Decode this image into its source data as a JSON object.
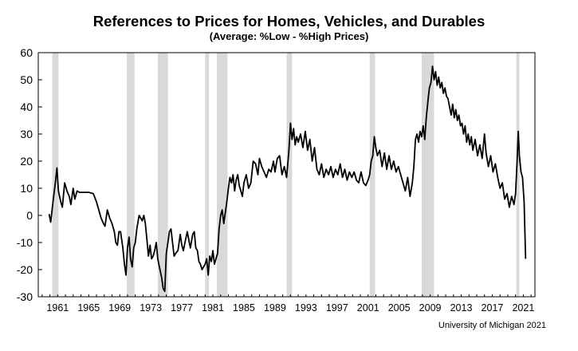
{
  "chart_data": {
    "type": "line",
    "title": "References to Prices for Homes, Vehicles, and Durables",
    "subtitle": "(Average:  %Low - %High Prices)",
    "xlabel": "",
    "ylabel": "",
    "xlim": [
      1958.5,
      2022.5
    ],
    "ylim": [
      -30,
      60
    ],
    "yticks": [
      -30,
      -20,
      -10,
      0,
      10,
      20,
      30,
      40,
      50,
      60
    ],
    "xticks": [
      1961,
      1965,
      1969,
      1973,
      1977,
      1981,
      1985,
      1989,
      1993,
      1997,
      2001,
      2005,
      2009,
      2013,
      2017,
      2021
    ],
    "grid": false,
    "recessions": [
      [
        1960.3,
        1961.1
      ],
      [
        1969.9,
        1970.9
      ],
      [
        1973.9,
        1975.2
      ],
      [
        1980.0,
        1980.5
      ],
      [
        1981.5,
        1982.9
      ],
      [
        1990.5,
        1991.2
      ],
      [
        2001.2,
        2001.9
      ],
      [
        2007.9,
        2009.5
      ],
      [
        2020.1,
        2020.5
      ]
    ],
    "recession_color": "#d9d9d9",
    "line_color": "#000000",
    "series": [
      {
        "values": [
          [
            1959.9,
            0.5
          ],
          [
            1960.1,
            -2.5
          ],
          [
            1960.4,
            5
          ],
          [
            1960.7,
            12
          ],
          [
            1960.9,
            17.5
          ],
          [
            1961.1,
            9
          ],
          [
            1961.4,
            5
          ],
          [
            1961.6,
            3
          ],
          [
            1961.9,
            12
          ],
          [
            1962.2,
            9
          ],
          [
            1962.5,
            7
          ],
          [
            1962.7,
            4
          ],
          [
            1963.0,
            10
          ],
          [
            1963.2,
            6
          ],
          [
            1963.5,
            9
          ],
          [
            1963.8,
            8.5
          ],
          [
            1964.3,
            8.5
          ],
          [
            1965.0,
            8.5
          ],
          [
            1965.6,
            8
          ],
          [
            1966.0,
            5
          ],
          [
            1966.3,
            2
          ],
          [
            1966.6,
            -1
          ],
          [
            1966.9,
            -3
          ],
          [
            1967.1,
            -4
          ],
          [
            1967.4,
            2
          ],
          [
            1967.7,
            -1
          ],
          [
            1968.0,
            -3
          ],
          [
            1968.3,
            -6
          ],
          [
            1968.5,
            -10
          ],
          [
            1968.7,
            -11
          ],
          [
            1968.9,
            -6
          ],
          [
            1969.1,
            -6
          ],
          [
            1969.4,
            -12
          ],
          [
            1969.6,
            -18
          ],
          [
            1969.8,
            -22
          ],
          [
            1970.0,
            -12
          ],
          [
            1970.2,
            -8
          ],
          [
            1970.4,
            -16
          ],
          [
            1970.6,
            -19
          ],
          [
            1970.8,
            -12
          ],
          [
            1971.0,
            -10
          ],
          [
            1971.2,
            -5
          ],
          [
            1971.5,
            0
          ],
          [
            1971.7,
            -1
          ],
          [
            1971.9,
            -2
          ],
          [
            1972.1,
            0
          ],
          [
            1972.3,
            -3
          ],
          [
            1972.5,
            -9
          ],
          [
            1972.7,
            -15
          ],
          [
            1972.9,
            -11
          ],
          [
            1973.1,
            -16
          ],
          [
            1973.3,
            -15
          ],
          [
            1973.5,
            -13
          ],
          [
            1973.7,
            -10
          ],
          [
            1973.9,
            -16
          ],
          [
            1974.1,
            -19
          ],
          [
            1974.4,
            -23
          ],
          [
            1974.6,
            -27
          ],
          [
            1974.8,
            -28
          ],
          [
            1975.0,
            -14
          ],
          [
            1975.2,
            -10
          ],
          [
            1975.4,
            -6
          ],
          [
            1975.6,
            -5
          ],
          [
            1975.8,
            -10
          ],
          [
            1976.0,
            -15
          ],
          [
            1976.2,
            -14
          ],
          [
            1976.5,
            -13
          ],
          [
            1976.8,
            -7
          ],
          [
            1977.0,
            -11
          ],
          [
            1977.2,
            -13
          ],
          [
            1977.4,
            -10
          ],
          [
            1977.7,
            -6
          ],
          [
            1977.9,
            -9
          ],
          [
            1978.1,
            -12
          ],
          [
            1978.4,
            -7
          ],
          [
            1978.6,
            -6
          ],
          [
            1978.8,
            -12
          ],
          [
            1979.0,
            -13
          ],
          [
            1979.2,
            -17
          ],
          [
            1979.4,
            -18
          ],
          [
            1979.6,
            -20
          ],
          [
            1979.8,
            -19
          ],
          [
            1980.0,
            -18
          ],
          [
            1980.2,
            -16
          ],
          [
            1980.4,
            -22
          ],
          [
            1980.6,
            -15
          ],
          [
            1980.8,
            -17
          ],
          [
            1981.0,
            -13
          ],
          [
            1981.2,
            -18
          ],
          [
            1981.4,
            -16
          ],
          [
            1981.6,
            -14
          ],
          [
            1981.8,
            -5
          ],
          [
            1982.0,
            0
          ],
          [
            1982.2,
            2
          ],
          [
            1982.4,
            -3
          ],
          [
            1982.6,
            1
          ],
          [
            1982.8,
            5
          ],
          [
            1983.0,
            10
          ],
          [
            1983.2,
            14
          ],
          [
            1983.4,
            12
          ],
          [
            1983.6,
            15
          ],
          [
            1983.8,
            9
          ],
          [
            1984.0,
            13
          ],
          [
            1984.2,
            15
          ],
          [
            1984.4,
            11
          ],
          [
            1984.6,
            9
          ],
          [
            1984.8,
            7
          ],
          [
            1985.0,
            12
          ],
          [
            1985.3,
            15
          ],
          [
            1985.6,
            10
          ],
          [
            1985.9,
            12
          ],
          [
            1986.2,
            20
          ],
          [
            1986.5,
            19
          ],
          [
            1986.8,
            15
          ],
          [
            1987.0,
            21
          ],
          [
            1987.3,
            18
          ],
          [
            1987.6,
            16
          ],
          [
            1987.9,
            14
          ],
          [
            1988.2,
            17
          ],
          [
            1988.5,
            16
          ],
          [
            1988.8,
            20
          ],
          [
            1989.0,
            16
          ],
          [
            1989.3,
            21
          ],
          [
            1989.6,
            22
          ],
          [
            1989.9,
            15
          ],
          [
            1990.2,
            18
          ],
          [
            1990.5,
            14
          ],
          [
            1990.8,
            24
          ],
          [
            1991.0,
            34
          ],
          [
            1991.2,
            28
          ],
          [
            1991.4,
            32
          ],
          [
            1991.6,
            26
          ],
          [
            1991.8,
            29
          ],
          [
            1992.0,
            27
          ],
          [
            1992.3,
            30
          ],
          [
            1992.6,
            25
          ],
          [
            1992.9,
            31
          ],
          [
            1993.2,
            24
          ],
          [
            1993.5,
            28
          ],
          [
            1993.8,
            20
          ],
          [
            1994.1,
            25
          ],
          [
            1994.4,
            17
          ],
          [
            1994.7,
            15
          ],
          [
            1995.0,
            19
          ],
          [
            1995.3,
            14
          ],
          [
            1995.6,
            17
          ],
          [
            1995.9,
            15
          ],
          [
            1996.2,
            18
          ],
          [
            1996.5,
            14
          ],
          [
            1996.8,
            17
          ],
          [
            1997.1,
            15
          ],
          [
            1997.4,
            19
          ],
          [
            1997.7,
            14
          ],
          [
            1998.0,
            17
          ],
          [
            1998.3,
            13
          ],
          [
            1998.6,
            16
          ],
          [
            1998.9,
            14
          ],
          [
            1999.2,
            16
          ],
          [
            1999.5,
            13
          ],
          [
            1999.8,
            12
          ],
          [
            2000.1,
            16
          ],
          [
            2000.4,
            12
          ],
          [
            2000.7,
            11
          ],
          [
            2001.0,
            13
          ],
          [
            2001.2,
            15
          ],
          [
            2001.4,
            20
          ],
          [
            2001.6,
            22
          ],
          [
            2001.8,
            29
          ],
          [
            2002.0,
            25
          ],
          [
            2002.2,
            22
          ],
          [
            2002.5,
            24
          ],
          [
            2002.8,
            18
          ],
          [
            2003.1,
            23
          ],
          [
            2003.4,
            17
          ],
          [
            2003.7,
            22
          ],
          [
            2004.0,
            17
          ],
          [
            2004.3,
            20
          ],
          [
            2004.6,
            16
          ],
          [
            2004.9,
            18
          ],
          [
            2005.2,
            15
          ],
          [
            2005.5,
            12
          ],
          [
            2005.8,
            9
          ],
          [
            2006.1,
            14
          ],
          [
            2006.4,
            7
          ],
          [
            2006.7,
            12
          ],
          [
            2006.9,
            18
          ],
          [
            2007.1,
            28
          ],
          [
            2007.3,
            30
          ],
          [
            2007.5,
            27
          ],
          [
            2007.7,
            31
          ],
          [
            2007.9,
            29
          ],
          [
            2008.1,
            33
          ],
          [
            2008.3,
            28
          ],
          [
            2008.5,
            36
          ],
          [
            2008.7,
            42
          ],
          [
            2008.9,
            47
          ],
          [
            2009.1,
            49
          ],
          [
            2009.3,
            55
          ],
          [
            2009.5,
            50
          ],
          [
            2009.7,
            53
          ],
          [
            2009.9,
            48
          ],
          [
            2010.1,
            51
          ],
          [
            2010.3,
            47
          ],
          [
            2010.5,
            49
          ],
          [
            2010.7,
            45
          ],
          [
            2010.9,
            47
          ],
          [
            2011.1,
            44
          ],
          [
            2011.3,
            43
          ],
          [
            2011.5,
            40
          ],
          [
            2011.7,
            37
          ],
          [
            2011.9,
            41
          ],
          [
            2012.1,
            36
          ],
          [
            2012.3,
            39
          ],
          [
            2012.5,
            35
          ],
          [
            2012.7,
            37
          ],
          [
            2012.9,
            33
          ],
          [
            2013.1,
            34
          ],
          [
            2013.3,
            30
          ],
          [
            2013.5,
            33
          ],
          [
            2013.7,
            27
          ],
          [
            2013.9,
            30
          ],
          [
            2014.1,
            26
          ],
          [
            2014.3,
            29
          ],
          [
            2014.5,
            24
          ],
          [
            2014.8,
            28
          ],
          [
            2015.1,
            22
          ],
          [
            2015.4,
            26
          ],
          [
            2015.7,
            21
          ],
          [
            2016.0,
            30
          ],
          [
            2016.2,
            23
          ],
          [
            2016.5,
            18
          ],
          [
            2016.8,
            22
          ],
          [
            2017.1,
            16
          ],
          [
            2017.4,
            19
          ],
          [
            2017.7,
            14
          ],
          [
            2018.0,
            10
          ],
          [
            2018.3,
            12
          ],
          [
            2018.6,
            6
          ],
          [
            2018.9,
            8
          ],
          [
            2019.2,
            3
          ],
          [
            2019.5,
            7
          ],
          [
            2019.8,
            4
          ],
          [
            2020.0,
            8
          ],
          [
            2020.2,
            20
          ],
          [
            2020.35,
            31
          ],
          [
            2020.5,
            22
          ],
          [
            2020.7,
            16
          ],
          [
            2020.9,
            14
          ],
          [
            2021.1,
            5
          ],
          [
            2021.3,
            -16
          ]
        ]
      }
    ]
  },
  "source": "University of Michigan 2021"
}
